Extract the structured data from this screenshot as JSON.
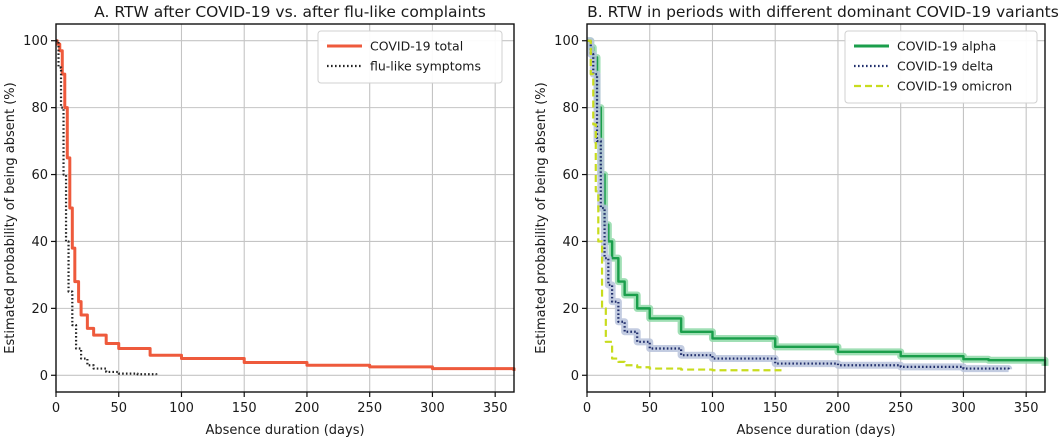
{
  "chart_data": [
    {
      "id": "A",
      "type": "line",
      "title": "A. RTW after COVID-19 vs. after flu-like complaints",
      "xlabel": "Absence duration (days)",
      "ylabel": "Estimated probability of being absent (%)",
      "xlim": [
        0,
        365
      ],
      "ylim": [
        -5,
        105
      ],
      "xticks": [
        0,
        50,
        100,
        150,
        200,
        250,
        300,
        350
      ],
      "yticks": [
        0,
        20,
        40,
        60,
        80,
        100
      ],
      "grid": true,
      "legend_position": "top-right",
      "series": [
        {
          "name": "COVID-19 total",
          "color": "#ee5a3c",
          "style": "solid",
          "band": false,
          "x": [
            0,
            1,
            3,
            5,
            7,
            9,
            11,
            13,
            15,
            18,
            20,
            25,
            30,
            40,
            50,
            75,
            100,
            150,
            200,
            250,
            300,
            365
          ],
          "y": [
            100,
            99,
            97,
            90,
            80,
            65,
            50,
            38,
            28,
            22,
            18,
            14,
            12,
            9.5,
            8,
            6,
            5,
            3.8,
            3,
            2.5,
            2,
            1.3
          ]
        },
        {
          "name": "flu-like symptoms",
          "color": "#222222",
          "style": "dotted",
          "band": false,
          "x": [
            0,
            2,
            4,
            6,
            8,
            10,
            13,
            16,
            20,
            25,
            30,
            40,
            50,
            65,
            80
          ],
          "y": [
            100,
            92,
            80,
            60,
            40,
            25,
            15,
            8,
            5,
            3,
            2,
            1,
            0.5,
            0.3,
            0.2
          ]
        }
      ]
    },
    {
      "id": "B",
      "type": "line",
      "title": "B. RTW in periods with different dominant COVID-19 variants",
      "xlabel": "Absence duration (days)",
      "ylabel": "Estimated probability of being absent (%)",
      "xlim": [
        0,
        365
      ],
      "ylim": [
        -5,
        105
      ],
      "xticks": [
        0,
        50,
        100,
        150,
        200,
        250,
        300,
        350
      ],
      "yticks": [
        0,
        20,
        40,
        60,
        80,
        100
      ],
      "grid": true,
      "legend_position": "top-right",
      "series": [
        {
          "name": "COVID-19 alpha",
          "color": "#1a9e4b",
          "band_color": "#8fd9a8",
          "style": "solid",
          "band": true,
          "x": [
            0,
            3,
            5,
            8,
            11,
            14,
            17,
            20,
            25,
            30,
            40,
            50,
            75,
            100,
            150,
            200,
            250,
            300,
            320,
            365
          ],
          "y": [
            100,
            98,
            95,
            80,
            60,
            45,
            40,
            35,
            28,
            24,
            20,
            17,
            13,
            11,
            8.5,
            7,
            5.7,
            4.8,
            4.5,
            2.8
          ]
        },
        {
          "name": "COVID-19 delta",
          "color": "#1f2d6b",
          "band_color": "#b9c3dc",
          "style": "dotted",
          "band": true,
          "x": [
            0,
            3,
            5,
            8,
            11,
            14,
            17,
            20,
            25,
            30,
            40,
            50,
            75,
            100,
            150,
            200,
            250,
            300,
            336
          ],
          "y": [
            100,
            96,
            90,
            70,
            50,
            35,
            27,
            22,
            16,
            13,
            10,
            8,
            6,
            5,
            3.5,
            3,
            2.5,
            2,
            1.8
          ]
        },
        {
          "name": "COVID-19 omicron",
          "color": "#c8dc1e",
          "style": "dashed",
          "band": false,
          "x": [
            0,
            3,
            5,
            7,
            9,
            12,
            15,
            20,
            25,
            30,
            40,
            50,
            75,
            100,
            155
          ],
          "y": [
            100,
            90,
            75,
            55,
            40,
            20,
            10,
            5,
            4,
            3,
            2.4,
            2,
            1.7,
            1.5,
            1.2
          ]
        }
      ]
    }
  ]
}
